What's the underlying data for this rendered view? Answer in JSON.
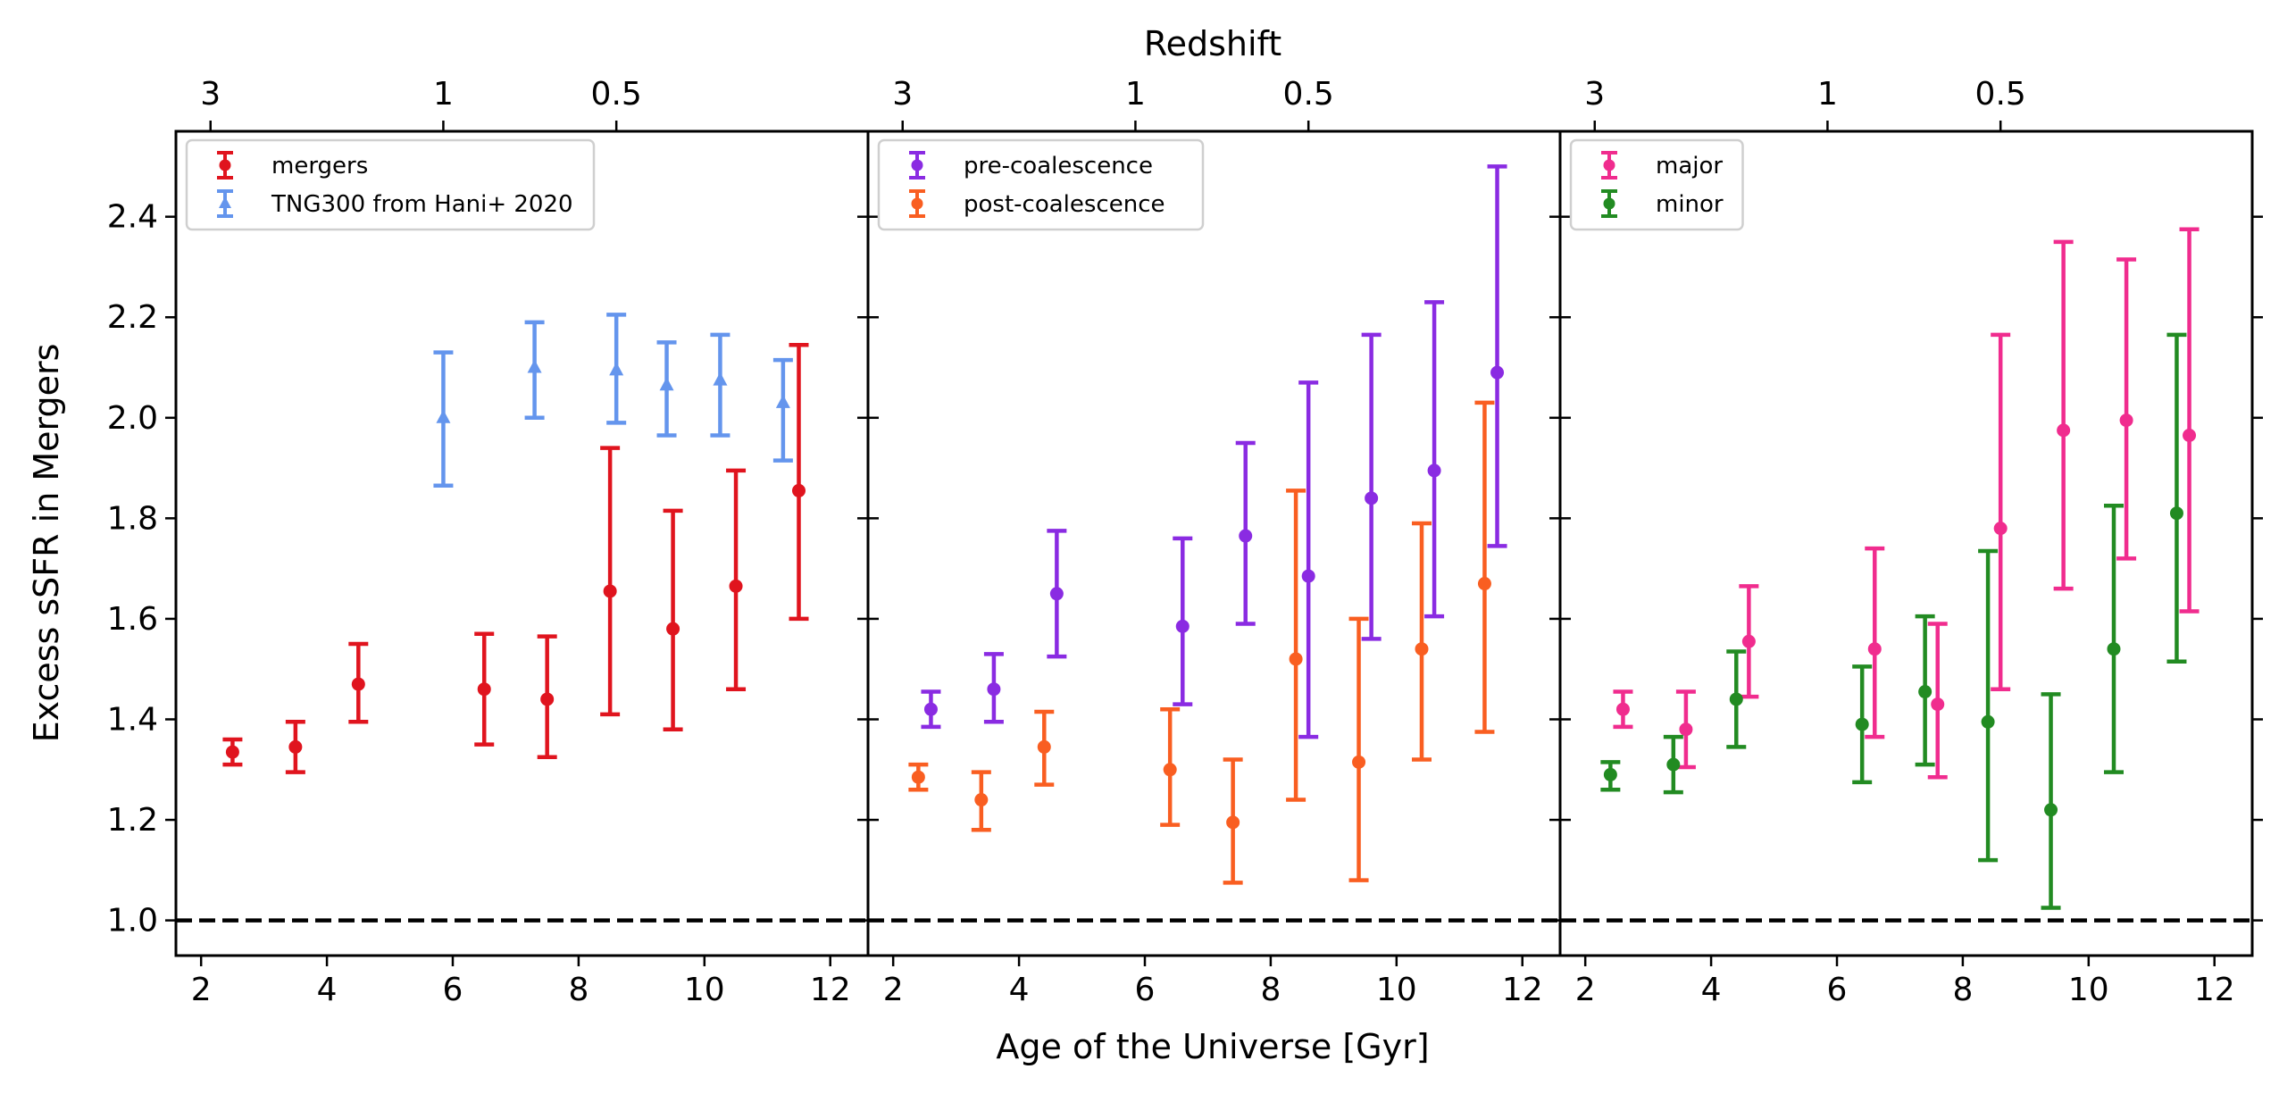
{
  "chart_data": {
    "type": "scatter",
    "shared": {
      "xlabel": "Age of the Universe [Gyr]",
      "ylabel": "Excess sSFR in Mergers",
      "top_axis_label": "Redshift",
      "xlim": [
        1.6,
        12.6
      ],
      "ylim": [
        0.93,
        2.57
      ],
      "x_ticks": [
        2,
        4,
        6,
        8,
        10,
        12
      ],
      "y_ticks": [
        1.0,
        1.2,
        1.4,
        1.6,
        1.8,
        2.0,
        2.2,
        2.4
      ],
      "top_ticks": [
        {
          "label": "3",
          "age": 2.15
        },
        {
          "label": "1",
          "age": 5.85
        },
        {
          "label": "0.5",
          "age": 8.6
        }
      ],
      "reference_line": 1.0,
      "legend_position": "upper-left"
    },
    "panels": [
      {
        "series": [
          {
            "name": "mergers",
            "color": "#e0141e",
            "marker": "circle",
            "points": [
              {
                "x": 2.5,
                "y": 1.335,
                "lo": 1.31,
                "hi": 1.36
              },
              {
                "x": 3.5,
                "y": 1.345,
                "lo": 1.295,
                "hi": 1.395
              },
              {
                "x": 4.5,
                "y": 1.47,
                "lo": 1.395,
                "hi": 1.55
              },
              {
                "x": 6.5,
                "y": 1.46,
                "lo": 1.35,
                "hi": 1.57
              },
              {
                "x": 7.5,
                "y": 1.44,
                "lo": 1.325,
                "hi": 1.565
              },
              {
                "x": 8.5,
                "y": 1.655,
                "lo": 1.41,
                "hi": 1.94
              },
              {
                "x": 9.5,
                "y": 1.58,
                "lo": 1.38,
                "hi": 1.815
              },
              {
                "x": 10.5,
                "y": 1.665,
                "lo": 1.46,
                "hi": 1.895
              },
              {
                "x": 11.5,
                "y": 1.855,
                "lo": 1.6,
                "hi": 2.145
              }
            ]
          },
          {
            "name": "TNG300 from Hani+ 2020",
            "color": "#6495ed",
            "marker": "triangle",
            "points": [
              {
                "x": 5.85,
                "y": 2.0,
                "lo": 1.865,
                "hi": 2.13
              },
              {
                "x": 7.3,
                "y": 2.1,
                "lo": 2.0,
                "hi": 2.19
              },
              {
                "x": 8.6,
                "y": 2.095,
                "lo": 1.99,
                "hi": 2.205
              },
              {
                "x": 9.4,
                "y": 2.065,
                "lo": 1.965,
                "hi": 2.15
              },
              {
                "x": 10.25,
                "y": 2.075,
                "lo": 1.965,
                "hi": 2.165
              },
              {
                "x": 11.25,
                "y": 2.03,
                "lo": 1.915,
                "hi": 2.115
              }
            ]
          }
        ]
      },
      {
        "series": [
          {
            "name": "pre-coalescence",
            "color": "#8a2be2",
            "marker": "circle",
            "points": [
              {
                "x": 2.6,
                "y": 1.42,
                "lo": 1.385,
                "hi": 1.455
              },
              {
                "x": 3.6,
                "y": 1.46,
                "lo": 1.395,
                "hi": 1.53
              },
              {
                "x": 4.6,
                "y": 1.65,
                "lo": 1.525,
                "hi": 1.775
              },
              {
                "x": 6.6,
                "y": 1.585,
                "lo": 1.43,
                "hi": 1.76
              },
              {
                "x": 7.6,
                "y": 1.765,
                "lo": 1.59,
                "hi": 1.95
              },
              {
                "x": 8.6,
                "y": 1.685,
                "lo": 1.365,
                "hi": 2.07
              },
              {
                "x": 9.6,
                "y": 1.84,
                "lo": 1.56,
                "hi": 2.165
              },
              {
                "x": 10.6,
                "y": 1.895,
                "lo": 1.605,
                "hi": 2.23
              },
              {
                "x": 11.6,
                "y": 2.09,
                "lo": 1.745,
                "hi": 2.5
              }
            ]
          },
          {
            "name": "post-coalescence",
            "color": "#f95e21",
            "marker": "circle",
            "points": [
              {
                "x": 2.4,
                "y": 1.285,
                "lo": 1.26,
                "hi": 1.31
              },
              {
                "x": 3.4,
                "y": 1.24,
                "lo": 1.18,
                "hi": 1.295
              },
              {
                "x": 4.4,
                "y": 1.345,
                "lo": 1.27,
                "hi": 1.415
              },
              {
                "x": 6.4,
                "y": 1.3,
                "lo": 1.19,
                "hi": 1.42
              },
              {
                "x": 7.4,
                "y": 1.195,
                "lo": 1.075,
                "hi": 1.32
              },
              {
                "x": 8.4,
                "y": 1.52,
                "lo": 1.24,
                "hi": 1.855
              },
              {
                "x": 9.4,
                "y": 1.315,
                "lo": 1.08,
                "hi": 1.6
              },
              {
                "x": 10.4,
                "y": 1.54,
                "lo": 1.32,
                "hi": 1.79
              },
              {
                "x": 11.4,
                "y": 1.67,
                "lo": 1.375,
                "hi": 2.03
              }
            ]
          }
        ]
      },
      {
        "series": [
          {
            "name": "major",
            "color": "#f02c8e",
            "marker": "circle",
            "points": [
              {
                "x": 2.6,
                "y": 1.42,
                "lo": 1.385,
                "hi": 1.455
              },
              {
                "x": 3.6,
                "y": 1.38,
                "lo": 1.305,
                "hi": 1.455
              },
              {
                "x": 4.6,
                "y": 1.555,
                "lo": 1.445,
                "hi": 1.665
              },
              {
                "x": 6.6,
                "y": 1.54,
                "lo": 1.365,
                "hi": 1.74
              },
              {
                "x": 7.6,
                "y": 1.43,
                "lo": 1.285,
                "hi": 1.59
              },
              {
                "x": 8.6,
                "y": 1.78,
                "lo": 1.46,
                "hi": 2.165
              },
              {
                "x": 9.6,
                "y": 1.975,
                "lo": 1.66,
                "hi": 2.35
              },
              {
                "x": 10.6,
                "y": 1.995,
                "lo": 1.72,
                "hi": 2.315
              },
              {
                "x": 11.6,
                "y": 1.965,
                "lo": 1.615,
                "hi": 2.375
              }
            ]
          },
          {
            "name": "minor",
            "color": "#228b22",
            "marker": "circle",
            "points": [
              {
                "x": 2.4,
                "y": 1.29,
                "lo": 1.26,
                "hi": 1.315
              },
              {
                "x": 3.4,
                "y": 1.31,
                "lo": 1.255,
                "hi": 1.365
              },
              {
                "x": 4.4,
                "y": 1.44,
                "lo": 1.345,
                "hi": 1.535
              },
              {
                "x": 6.4,
                "y": 1.39,
                "lo": 1.275,
                "hi": 1.505
              },
              {
                "x": 7.4,
                "y": 1.455,
                "lo": 1.31,
                "hi": 1.605
              },
              {
                "x": 8.4,
                "y": 1.395,
                "lo": 1.12,
                "hi": 1.735
              },
              {
                "x": 9.4,
                "y": 1.22,
                "lo": 1.025,
                "hi": 1.45
              },
              {
                "x": 10.4,
                "y": 1.54,
                "lo": 1.295,
                "hi": 1.825
              },
              {
                "x": 11.4,
                "y": 1.81,
                "lo": 1.515,
                "hi": 2.165
              }
            ]
          }
        ]
      }
    ]
  }
}
